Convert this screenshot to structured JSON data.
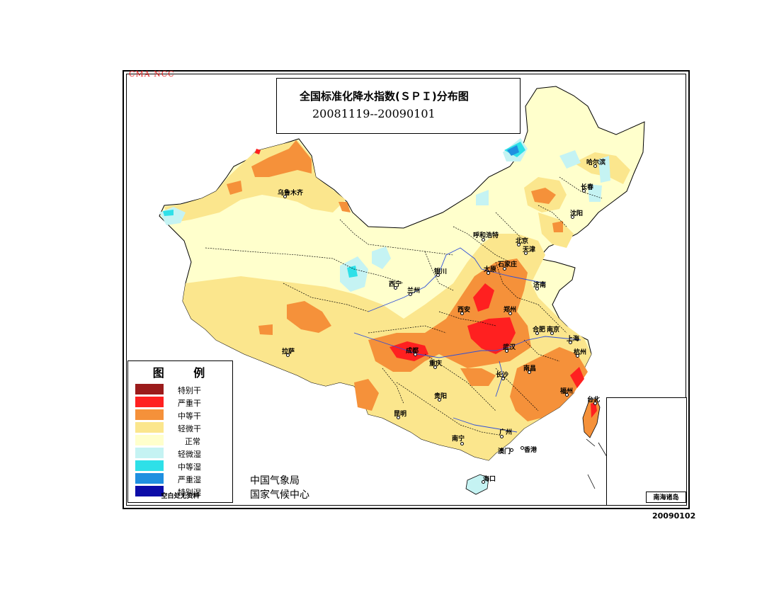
{
  "header": {
    "agency_tag": "CMA NCC",
    "title": "全国标准化降水指数(ＳＰＩ)分布图",
    "period": "20081119--20090101"
  },
  "legend": {
    "title": "图 例",
    "items": [
      {
        "label": "特别干",
        "color": "#9b1b1b"
      },
      {
        "label": "严重干",
        "color": "#ff2020"
      },
      {
        "label": "中等干",
        "color": "#f5913a"
      },
      {
        "label": "轻微干",
        "color": "#fbe68d"
      },
      {
        "label": "正常",
        "color": "#ffffcc"
      },
      {
        "label": "轻微湿",
        "color": "#c5f3f3"
      },
      {
        "label": "中等湿",
        "color": "#2ee0e8"
      },
      {
        "label": "严重湿",
        "color": "#2090e0"
      },
      {
        "label": "特别湿",
        "color": "#0c0ca8"
      }
    ],
    "note": "空白处无资料"
  },
  "issuer": {
    "line1": "中国气象局",
    "line2": "国家气候中心"
  },
  "issue_date": "20090102",
  "inset_label": "南海诸岛",
  "cities": [
    {
      "name": "乌鲁木齐"
    },
    {
      "name": "哈尔滨"
    },
    {
      "name": "长春"
    },
    {
      "name": "沈阳"
    },
    {
      "name": "呼和浩特"
    },
    {
      "name": "北京"
    },
    {
      "name": "天津"
    },
    {
      "name": "石家庄"
    },
    {
      "name": "太原"
    },
    {
      "name": "银川"
    },
    {
      "name": "西宁"
    },
    {
      "name": "兰州"
    },
    {
      "name": "济南"
    },
    {
      "name": "郑州"
    },
    {
      "name": "西安"
    },
    {
      "name": "合肥"
    },
    {
      "name": "南京"
    },
    {
      "name": "上海"
    },
    {
      "name": "武汉"
    },
    {
      "name": "杭州"
    },
    {
      "name": "成都"
    },
    {
      "name": "重庆"
    },
    {
      "name": "拉萨"
    },
    {
      "name": "长沙"
    },
    {
      "name": "南昌"
    },
    {
      "name": "福州"
    },
    {
      "name": "贵阳"
    },
    {
      "name": "昆明"
    },
    {
      "name": "台北"
    },
    {
      "name": "南宁"
    },
    {
      "name": "广州"
    },
    {
      "name": "澳门"
    },
    {
      "name": "香港"
    },
    {
      "name": "海口"
    }
  ]
}
